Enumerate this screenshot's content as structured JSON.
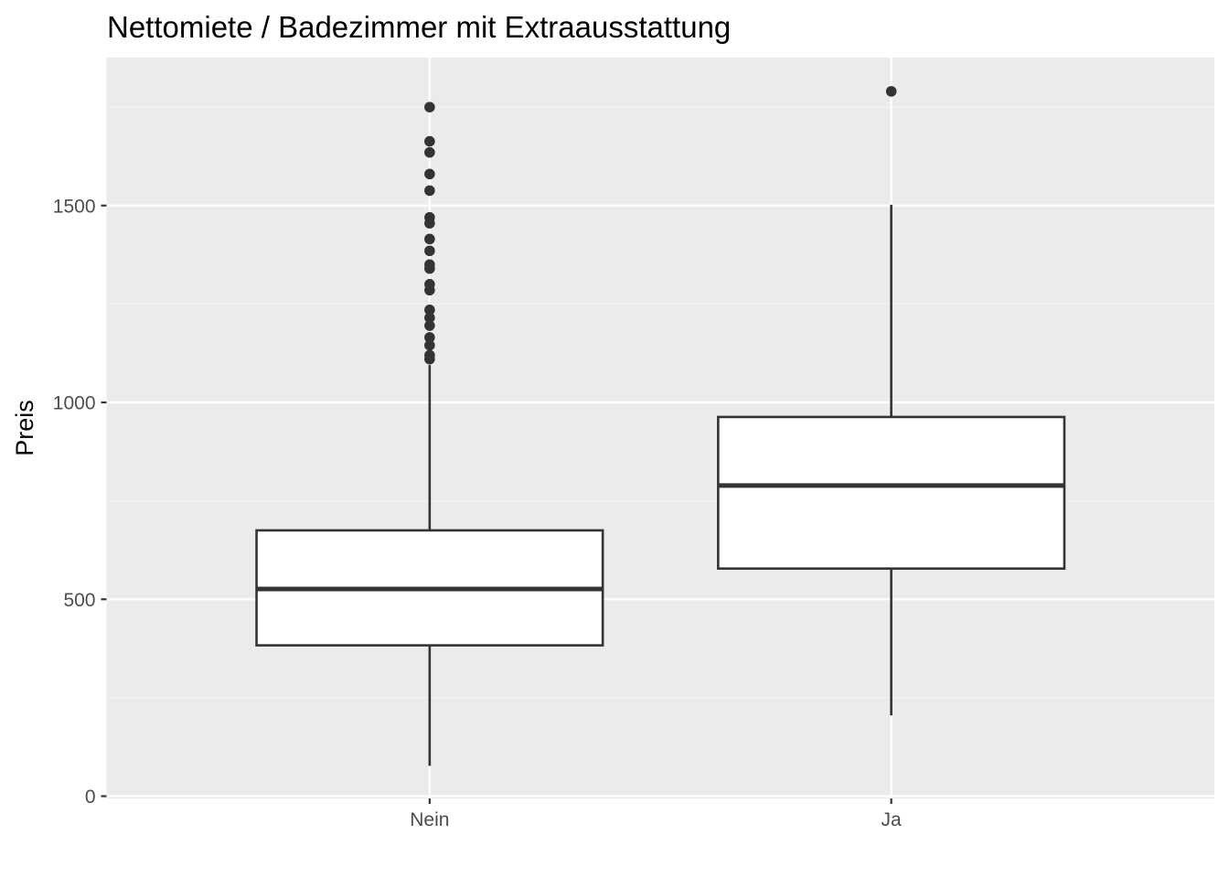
{
  "chart_data": {
    "type": "boxplot",
    "title": "Nettomiete / Badezimmer mit Extraausstattung",
    "xlabel": "",
    "ylabel": "Preis",
    "ylim": [
      0,
      1880
    ],
    "y_ticks": [
      0,
      500,
      1000,
      1500
    ],
    "y_minor_ticks": [
      250,
      750,
      1250,
      1750
    ],
    "grid": true,
    "categories": [
      "Nein",
      "Ja"
    ],
    "boxes": [
      {
        "category": "Nein",
        "whisker_low": 77,
        "q1": 383,
        "median": 526,
        "q3": 675,
        "whisker_high": 1095,
        "outliers": [
          1110,
          1120,
          1145,
          1165,
          1195,
          1215,
          1235,
          1285,
          1300,
          1340,
          1350,
          1385,
          1415,
          1455,
          1470,
          1538,
          1580,
          1635,
          1663,
          1750
        ]
      },
      {
        "category": "Ja",
        "whisker_low": 205,
        "q1": 578,
        "median": 789,
        "q3": 963,
        "whisker_high": 1502,
        "outliers": [
          1790
        ]
      }
    ],
    "colors": {
      "panel_background": "#ebebeb",
      "grid_major": "#ffffff",
      "grid_minor": "#f5f5f5",
      "box_fill": "#ffffff",
      "box_line": "#333333",
      "tick_label": "#4d4d4d",
      "axis_tick": "#333333"
    }
  }
}
